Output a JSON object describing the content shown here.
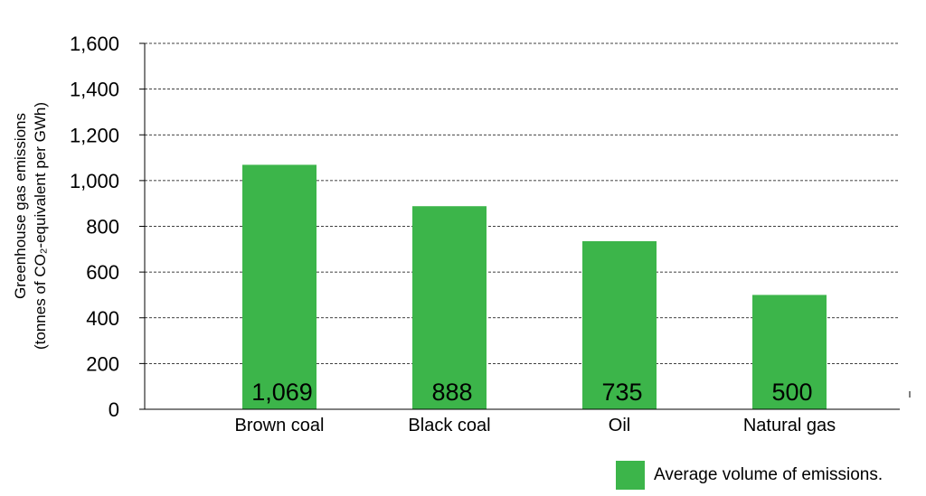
{
  "chart_data": {
    "type": "bar",
    "categories": [
      "Brown coal",
      "Black coal",
      "Oil",
      "Natural gas"
    ],
    "series": [
      {
        "name": "Average volume of emissions.",
        "values": [
          1069,
          888,
          735,
          500
        ]
      }
    ],
    "data_labels": [
      "1,069",
      "888",
      "735",
      "500"
    ],
    "ylabel_line1": "Greenhouse gas emissions",
    "ylabel_line2": "(tonnes of CO₂-equivalent per GWh)",
    "ylim": [
      0,
      1600
    ],
    "yticks": [
      0,
      200,
      400,
      600,
      800,
      1000,
      1200,
      1400,
      1600
    ],
    "ytick_labels": [
      "0",
      "200",
      "400",
      "600",
      "800",
      "1,000",
      "1,200",
      "1,400",
      "1,600"
    ],
    "grid": "dashed horizontal",
    "legend_position": "bottom-right",
    "bar_color": "#3cb54a"
  }
}
